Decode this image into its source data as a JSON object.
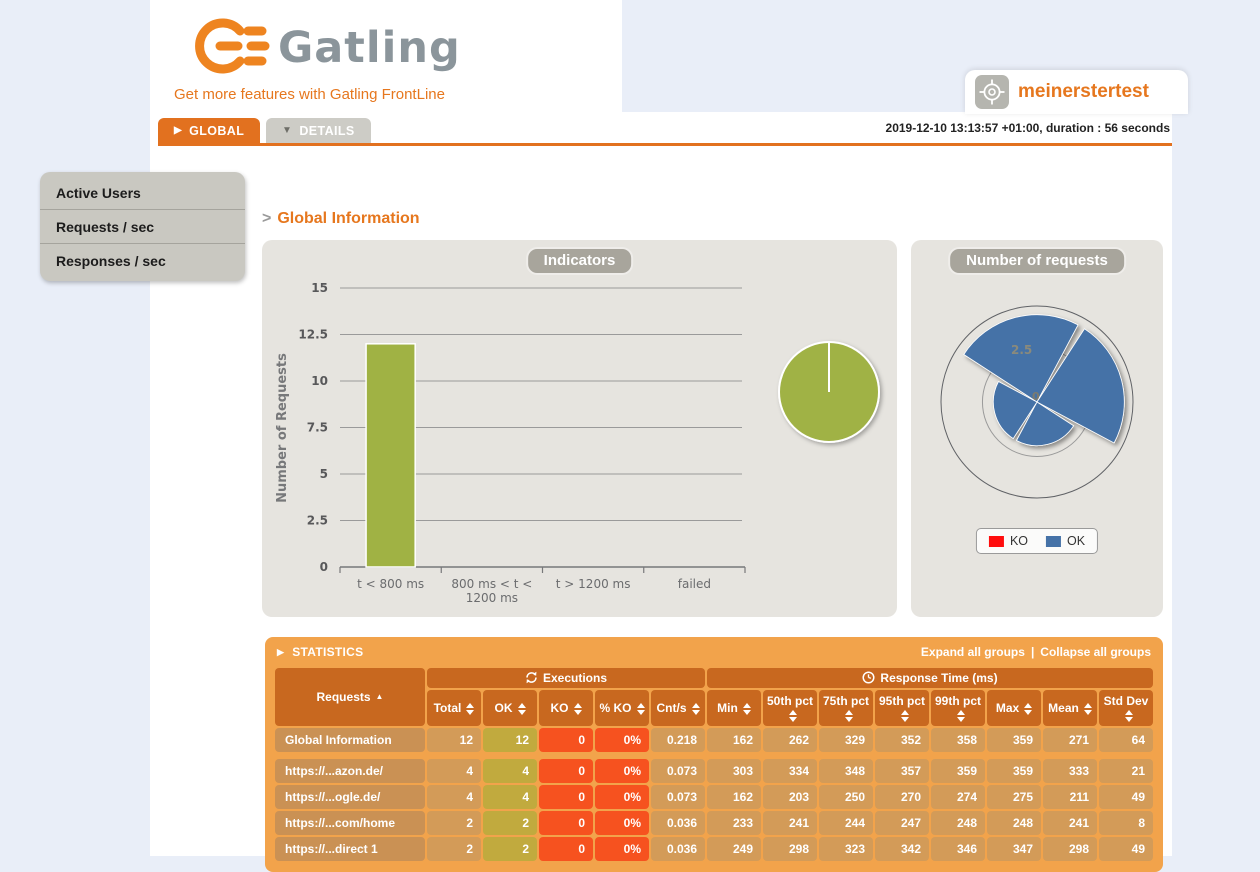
{
  "header": {
    "logo_text": "Gatling",
    "frontline_link": "Get more features with Gatling FrontLine",
    "simulation_name": "meinerstertest",
    "run_info": "2019-12-10 13:13:57 +01:00, duration : 56 seconds",
    "tabs": {
      "global": "GLOBAL",
      "details": "DETAILS"
    }
  },
  "icons": {
    "global_tab_arrow": "▶",
    "details_tab_arrow": "▼",
    "statistics_arrow": "▶",
    "breadcrumb_arrow": ">",
    "requests_sort_asc": "▲"
  },
  "sidebar": {
    "items": [
      {
        "label": "Active Users"
      },
      {
        "label": "Requests / sec"
      },
      {
        "label": "Responses / sec"
      }
    ]
  },
  "page": {
    "title": "Global Information"
  },
  "panels": {
    "indicators": {
      "title": "Indicators"
    },
    "requests": {
      "title": "Number of requests",
      "legend": [
        {
          "label": "KO",
          "color": "#ff0d0d"
        },
        {
          "label": "OK",
          "color": "#4572a7"
        }
      ]
    }
  },
  "chart_data": [
    {
      "id": "indicators-bar",
      "type": "bar",
      "title": "Indicators",
      "categories": [
        "t < 800 ms",
        "800 ms < t < 1200 ms",
        "t > 1200 ms",
        "failed"
      ],
      "values": [
        12,
        0,
        0,
        0
      ],
      "xlabel": "",
      "ylabel": "Number of Requests",
      "yticks": [
        0,
        2.5,
        5,
        7.5,
        10,
        12.5,
        15
      ],
      "ylim": [
        0,
        15
      ],
      "grid": true,
      "bar_color": "#a0b244"
    },
    {
      "id": "indicators-pie",
      "type": "pie",
      "slices": [
        {
          "label": "t < 800 ms",
          "value": 12,
          "color": "#a0b244"
        }
      ]
    },
    {
      "id": "requests-rose",
      "type": "pie",
      "subtype": "polar-rose",
      "series": [
        {
          "name": "https://...azon.de/",
          "value": 4
        },
        {
          "name": "https://...ogle.de/",
          "value": 4
        },
        {
          "name": "https://...com/home",
          "value": 2
        },
        {
          "name": "https://...direct 1",
          "value": 2
        }
      ],
      "rticks": [
        0,
        2.5
      ],
      "rlim": [
        0,
        4.4
      ],
      "wedge_color": "#4572a7",
      "legend_position": "bottom"
    }
  ],
  "stats": {
    "header": {
      "title": "STATISTICS",
      "expand": "Expand all groups",
      "separator": "|",
      "collapse": "Collapse all groups"
    },
    "groups": {
      "requests": "Requests",
      "executions": "Executions",
      "response_time": "Response Time (ms)"
    },
    "columns": [
      "Total",
      "OK",
      "KO",
      "% KO",
      "Cnt/s",
      "Min",
      "50th pct",
      "75th pct",
      "95th pct",
      "99th pct",
      "Max",
      "Mean",
      "Std Dev"
    ],
    "rows": [
      {
        "name": "Global Information",
        "values": [
          "12",
          "12",
          "0",
          "0%",
          "0.218",
          "162",
          "262",
          "329",
          "352",
          "358",
          "359",
          "271",
          "64"
        ]
      },
      {
        "name": "https://...azon.de/",
        "values": [
          "4",
          "4",
          "0",
          "0%",
          "0.073",
          "303",
          "334",
          "348",
          "357",
          "359",
          "359",
          "333",
          "21"
        ]
      },
      {
        "name": "https://...ogle.de/",
        "values": [
          "4",
          "4",
          "0",
          "0%",
          "0.073",
          "162",
          "203",
          "250",
          "270",
          "274",
          "275",
          "211",
          "49"
        ]
      },
      {
        "name": "https://...com/home",
        "values": [
          "2",
          "2",
          "0",
          "0%",
          "0.036",
          "233",
          "241",
          "244",
          "247",
          "248",
          "248",
          "241",
          "8"
        ]
      },
      {
        "name": "https://...direct 1",
        "values": [
          "2",
          "2",
          "0",
          "0%",
          "0.036",
          "249",
          "298",
          "323",
          "342",
          "346",
          "347",
          "298",
          "49"
        ]
      }
    ]
  },
  "colors": {
    "accent_orange": "#e2711f",
    "title_orange": "#e6771e",
    "stats_panel": "#f2a34b",
    "stats_header_cell": "#c8681f",
    "ok_cell": "#c1aa3e",
    "ko_cell": "#f6521f",
    "bar_green": "#a0b244",
    "rose_blue": "#4572a7",
    "legend_ko_red": "#ff0d0d",
    "panel_gray": "#e6e4df",
    "page_background": "#e9eef8"
  }
}
